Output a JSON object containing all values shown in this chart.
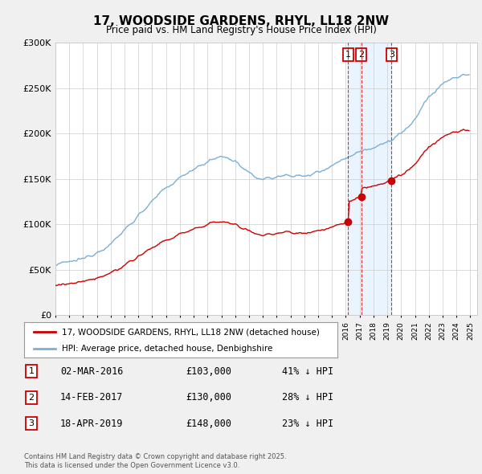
{
  "title": "17, WOODSIDE GARDENS, RHYL, LL18 2NW",
  "subtitle": "Price paid vs. HM Land Registry's House Price Index (HPI)",
  "ylim": [
    0,
    300000
  ],
  "yticks": [
    0,
    50000,
    100000,
    150000,
    200000,
    250000,
    300000
  ],
  "ytick_labels": [
    "£0",
    "£50K",
    "£100K",
    "£150K",
    "£200K",
    "£250K",
    "£300K"
  ],
  "hpi_color": "#7bafd4",
  "price_color": "#cc0000",
  "shade_color": "#ddeeff",
  "sale_t": [
    21.17,
    22.12,
    24.3
  ],
  "sale_years": [
    2016.17,
    2017.12,
    2019.3
  ],
  "sale_prices": [
    103000,
    130000,
    148000
  ],
  "sale_labels": [
    "1",
    "2",
    "3"
  ],
  "legend_line1": "17, WOODSIDE GARDENS, RHYL, LL18 2NW (detached house)",
  "legend_line2": "HPI: Average price, detached house, Denbighshire",
  "table": [
    [
      "1",
      "02-MAR-2016",
      "£103,000",
      "41% ↓ HPI"
    ],
    [
      "2",
      "14-FEB-2017",
      "£130,000",
      "28% ↓ HPI"
    ],
    [
      "3",
      "18-APR-2019",
      "£148,000",
      "23% ↓ HPI"
    ]
  ],
  "footer1": "Contains HM Land Registry data © Crown copyright and database right 2025.",
  "footer2": "This data is licensed under the Open Government Licence v3.0.",
  "bg_color": "#f0f0f0",
  "plot_bg": "#ffffff"
}
